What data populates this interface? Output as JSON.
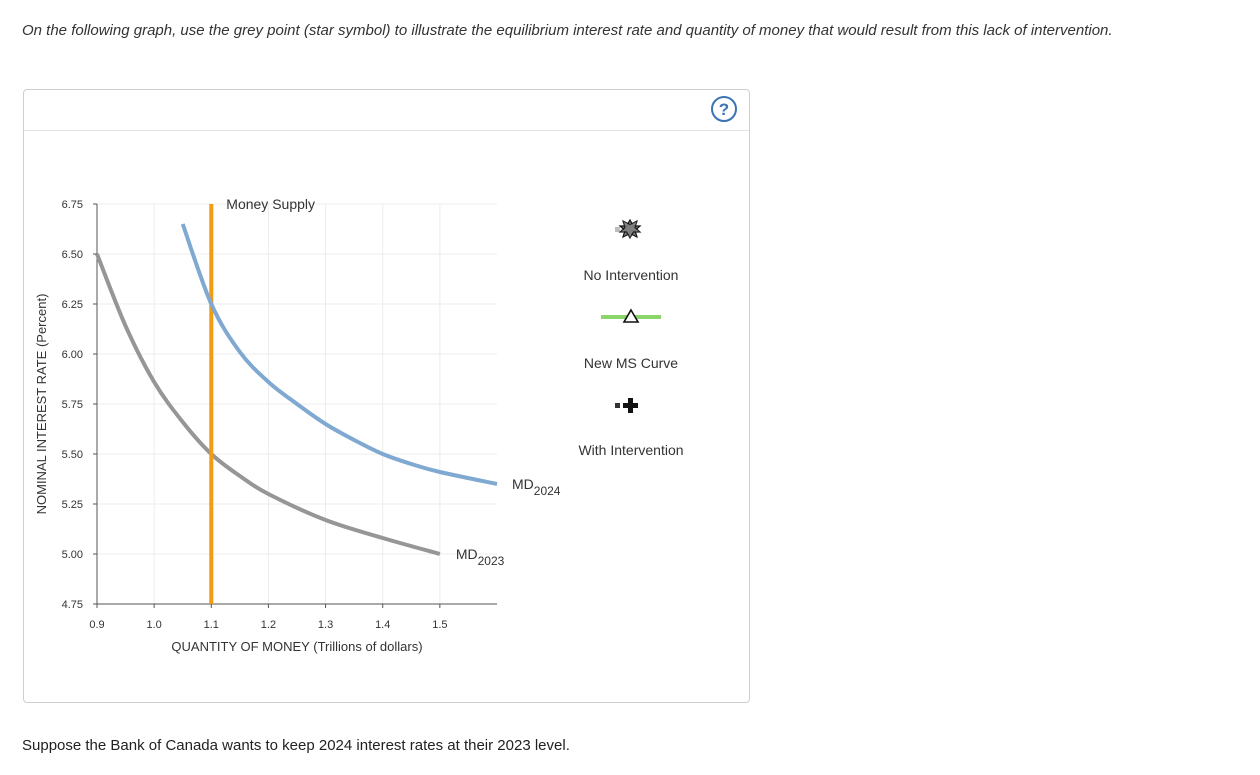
{
  "instruction": "On the following graph, use the grey point (star symbol) to illustrate the equilibrium interest rate and quantity of money that would result from this lack of intervention.",
  "help_icon": "?",
  "footer": "Suppose the Bank of Canada wants to keep 2024 interest rates at their 2023 level.",
  "colors": {
    "md2023": "#969696",
    "md2024": "#7fa9d1",
    "money_supply": "#f29c11",
    "new_ms": "#8bd66b",
    "grid": "#ececec"
  },
  "palette": {
    "items": [
      {
        "label": "No Intervention",
        "icon": "star-icon",
        "color": "#7f7f7f"
      },
      {
        "label": "New MS Curve",
        "icon": "triangle-line-icon",
        "color": "#8bd66b"
      },
      {
        "label": "With Intervention",
        "icon": "plus-icon",
        "color": "#000000"
      }
    ]
  },
  "chart_data": {
    "type": "line",
    "xlabel": "QUANTITY OF MONEY (Trillions of dollars)",
    "ylabel": "NOMINAL INTEREST RATE (Percent)",
    "xlim": [
      0.9,
      1.6
    ],
    "ylim": [
      4.75,
      6.75
    ],
    "xticks": [
      "0.9",
      "1.0",
      "1.1",
      "1.2",
      "1.3",
      "1.4",
      "1.5"
    ],
    "yticks": [
      "4.75",
      "5.00",
      "5.25",
      "5.50",
      "5.75",
      "6.00",
      "6.25",
      "6.50",
      "6.75"
    ],
    "grid": true,
    "series": [
      {
        "name": "MD",
        "subscript": "2023",
        "x": [
          0.9,
          0.95,
          1.0,
          1.05,
          1.1,
          1.15,
          1.2,
          1.3,
          1.4,
          1.5
        ],
        "y": [
          6.5,
          6.14,
          5.86,
          5.66,
          5.5,
          5.39,
          5.3,
          5.17,
          5.08,
          5.0
        ]
      },
      {
        "name": "MD",
        "subscript": "2024",
        "x": [
          1.05,
          1.1,
          1.15,
          1.2,
          1.25,
          1.3,
          1.35,
          1.4,
          1.45,
          1.5,
          1.6
        ],
        "y": [
          6.65,
          6.25,
          6.01,
          5.86,
          5.75,
          5.65,
          5.57,
          5.5,
          5.45,
          5.41,
          5.35
        ]
      },
      {
        "name": "Money Supply",
        "x": [
          1.1,
          1.1
        ],
        "y": [
          4.75,
          6.75
        ]
      }
    ]
  }
}
